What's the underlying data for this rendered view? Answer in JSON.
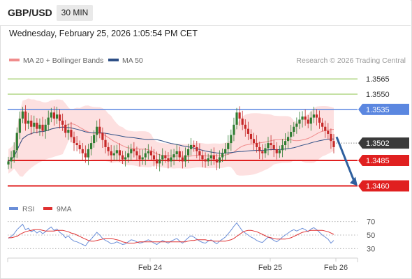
{
  "header": {
    "symbol": "GBP/USD",
    "timeframe": "30 MIN",
    "datetime": "Wednesday, February 25, 2026 1:05:54 PM CET"
  },
  "legend": {
    "ma20_bb": "MA 20 + Bollinger Bands",
    "ma50": "MA 50",
    "copyright": "Research © 2026 Trading Central",
    "rsi": "RSI",
    "rsi_ma": "9MA"
  },
  "colors": {
    "ma20": "#f08c8c",
    "bands": "#fde0e0",
    "ma50": "#2e4f86",
    "candle_up": "#2f7d32",
    "candle_down": "#c62828",
    "resistance": "#5b87e0",
    "support": "#e02020",
    "target_green": "#8bc34a",
    "rsi_line": "#6a8ed8",
    "rsi_ma": "#e03030",
    "arrow": "#2e5f9e",
    "last_price_badge": "#3a3a3a"
  },
  "chart_data": [
    {
      "type": "candlestick",
      "title": "GBP/USD 30 MIN",
      "ylim": [
        1.3448,
        1.3576
      ],
      "x_ticks": [
        "Feb 24",
        "Feb 25",
        "Feb 26"
      ],
      "levels": [
        {
          "value": 1.3565,
          "label": "1.3565",
          "kind": "target"
        },
        {
          "value": 1.355,
          "label": "1.3550",
          "kind": "target"
        },
        {
          "value": 1.3535,
          "label": "1.3535",
          "kind": "resistance"
        },
        {
          "value": 1.3502,
          "label": "1.3502",
          "kind": "last"
        },
        {
          "value": 1.3485,
          "label": "1.3485",
          "kind": "support"
        },
        {
          "value": 1.346,
          "label": "1.3460",
          "kind": "support"
        }
      ],
      "forecast_arrow": {
        "from": 1.3508,
        "to": 1.346
      },
      "close_series": [
        1.3484,
        1.3488,
        1.3495,
        1.3512,
        1.3526,
        1.3533,
        1.3521,
        1.3524,
        1.3518,
        1.3522,
        1.3516,
        1.352,
        1.3514,
        1.352,
        1.3527,
        1.3532,
        1.3526,
        1.353,
        1.3524,
        1.352,
        1.3512,
        1.3515,
        1.3508,
        1.3502,
        1.35,
        1.3496,
        1.3492,
        1.3488,
        1.3496,
        1.3502,
        1.351,
        1.3518,
        1.3512,
        1.3505,
        1.3498,
        1.3494,
        1.349,
        1.3492,
        1.3495,
        1.349,
        1.3486,
        1.3488,
        1.3492,
        1.3496,
        1.3494,
        1.349,
        1.3486,
        1.3488,
        1.3492,
        1.3494,
        1.349,
        1.3486,
        1.3482,
        1.3486,
        1.349,
        1.3487,
        1.3484,
        1.3488,
        1.3491,
        1.3494,
        1.3488,
        1.3484,
        1.349,
        1.3496,
        1.35,
        1.3498,
        1.3494,
        1.349,
        1.3486,
        1.3484,
        1.3487,
        1.349,
        1.3486,
        1.3483,
        1.3488,
        1.3492,
        1.3496,
        1.3502,
        1.351,
        1.352,
        1.3532,
        1.3526,
        1.352,
        1.3516,
        1.3511,
        1.3506,
        1.3502,
        1.3498,
        1.3494,
        1.3492,
        1.3497,
        1.3502,
        1.35,
        1.3496,
        1.3492,
        1.3495,
        1.35,
        1.3504,
        1.3508,
        1.3513,
        1.3518,
        1.3521,
        1.3525,
        1.3528,
        1.3525,
        1.3521,
        1.3527,
        1.353,
        1.3527,
        1.3522,
        1.3518,
        1.3514,
        1.3511,
        1.3504,
        1.3498
      ]
    },
    {
      "type": "line",
      "title": "RSI",
      "ylim": [
        20,
        80
      ],
      "y_ticks": [
        70,
        50,
        30
      ],
      "series": [
        {
          "name": "RSI",
          "values": [
            45,
            48,
            52,
            58,
            62,
            66,
            58,
            60,
            55,
            57,
            53,
            56,
            52,
            55,
            59,
            62,
            57,
            59,
            54,
            51,
            46,
            49,
            44,
            41,
            40,
            38,
            36,
            34,
            40,
            44,
            49,
            54,
            50,
            45,
            42,
            40,
            37,
            38,
            40,
            38,
            36,
            37,
            40,
            43,
            42,
            40,
            38,
            39,
            41,
            43,
            41,
            38,
            36,
            39,
            42,
            40,
            38,
            41,
            43,
            45,
            41,
            38,
            42,
            46,
            49,
            47,
            44,
            41,
            39,
            38,
            41,
            43,
            40,
            37,
            41,
            44,
            47,
            52,
            57,
            63,
            68,
            62,
            56,
            53,
            50,
            47,
            45,
            42,
            40,
            39,
            43,
            47,
            45,
            42,
            40,
            43,
            47,
            50,
            53,
            56,
            58,
            56,
            58,
            60,
            58,
            55,
            59,
            61,
            58,
            54,
            50,
            47,
            44,
            38,
            42
          ]
        },
        {
          "name": "9MA",
          "values": [
            46,
            46,
            47,
            48,
            51,
            53,
            55,
            56,
            57,
            58,
            58,
            58,
            57,
            56,
            56,
            56,
            56,
            57,
            57,
            57,
            56,
            55,
            53,
            52,
            50,
            48,
            46,
            44,
            42,
            41,
            41,
            42,
            43,
            44,
            45,
            45,
            45,
            44,
            43,
            42,
            40,
            39,
            38,
            38,
            38,
            39,
            40,
            40,
            40,
            40,
            40,
            40,
            40,
            40,
            40,
            40,
            40,
            40,
            40,
            40,
            40,
            40,
            40,
            41,
            42,
            42,
            43,
            43,
            43,
            43,
            42,
            42,
            41,
            41,
            41,
            41,
            41,
            42,
            43,
            45,
            48,
            51,
            54,
            56,
            57,
            57,
            56,
            55,
            53,
            51,
            49,
            47,
            46,
            45,
            44,
            44,
            44,
            44,
            45,
            46,
            48,
            50,
            52,
            54,
            55,
            56,
            57,
            57,
            57,
            57,
            57,
            56,
            55,
            53,
            51
          ]
        }
      ]
    }
  ]
}
